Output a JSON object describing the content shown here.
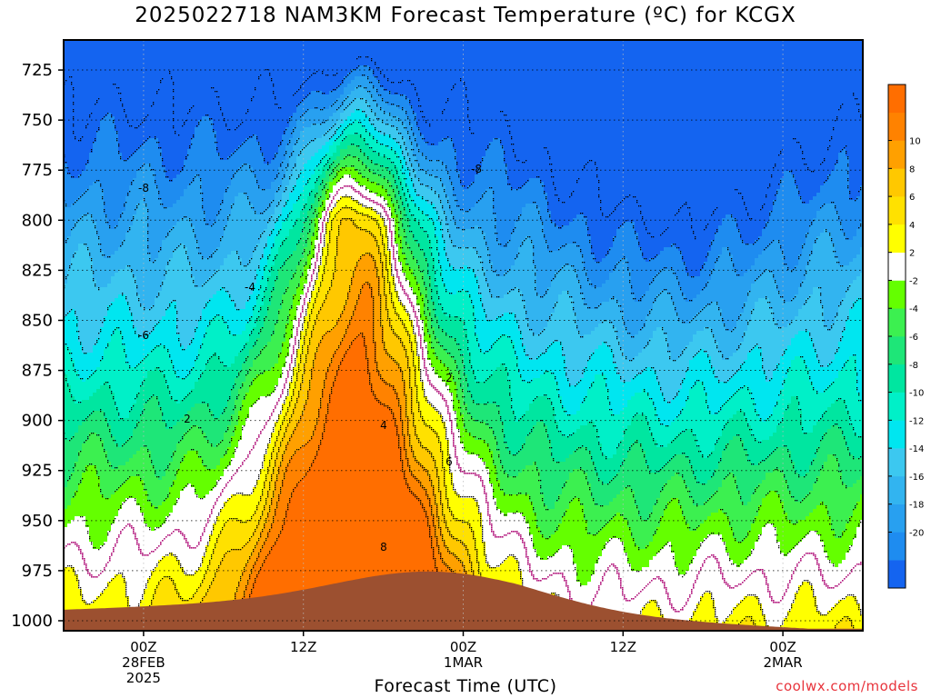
{
  "chart_data": {
    "type": "heatmap",
    "title": "2025022718 NAM3KM Forecast Temperature (ºC) for KCGX",
    "xlabel": "Forecast Time (UTC)",
    "ylabel": "",
    "y_axis": {
      "scale": "pressure (hPa), inverted",
      "ylim": [
        1005,
        710
      ],
      "ticks": [
        "725",
        "750",
        "775",
        "800",
        "825",
        "850",
        "875",
        "900",
        "925",
        "950",
        "975",
        "1000"
      ]
    },
    "x_axis": {
      "xlim": [
        -6,
        54
      ],
      "ticks": [
        {
          "hour": 0,
          "lines": [
            "00Z",
            "28FEB",
            "2025"
          ]
        },
        {
          "hour": 12,
          "lines": [
            "12Z"
          ]
        },
        {
          "hour": 24,
          "lines": [
            "00Z",
            "1MAR"
          ]
        },
        {
          "hour": 36,
          "lines": [
            "12Z"
          ]
        },
        {
          "hour": 48,
          "lines": [
            "00Z",
            "2MAR"
          ]
        }
      ]
    },
    "grid": true,
    "colorbar": {
      "placement": "right",
      "levels": [
        -22,
        -20,
        -18,
        -16,
        -14,
        -12,
        -10,
        -8,
        -6,
        -4,
        -2,
        2,
        4,
        6,
        8,
        10,
        12
      ],
      "colors": [
        "#1464f0",
        "#1e8cf0",
        "#28a0f0",
        "#32b4f0",
        "#3cc8f0",
        "#00e6f0",
        "#00f0c8",
        "#00e6a0",
        "#1ee678",
        "#3cf050",
        "#64ff00",
        "#ffffff",
        "#ffff00",
        "#ffe100",
        "#ffc800",
        "#ffa000",
        "#ff8200",
        "#ff6e00"
      ],
      "tick_labels": [
        "-20",
        "-18",
        "-16",
        "-14",
        "-12",
        "-10",
        "-8",
        "-6",
        "-4",
        "-2",
        "2",
        "4",
        "6",
        "8",
        "10"
      ]
    },
    "contour_labels": [
      "-8",
      "-4",
      "-6",
      "2",
      "-8",
      "2",
      "4",
      "6",
      "8"
    ]
  },
  "credit": "coolwx.com/models"
}
